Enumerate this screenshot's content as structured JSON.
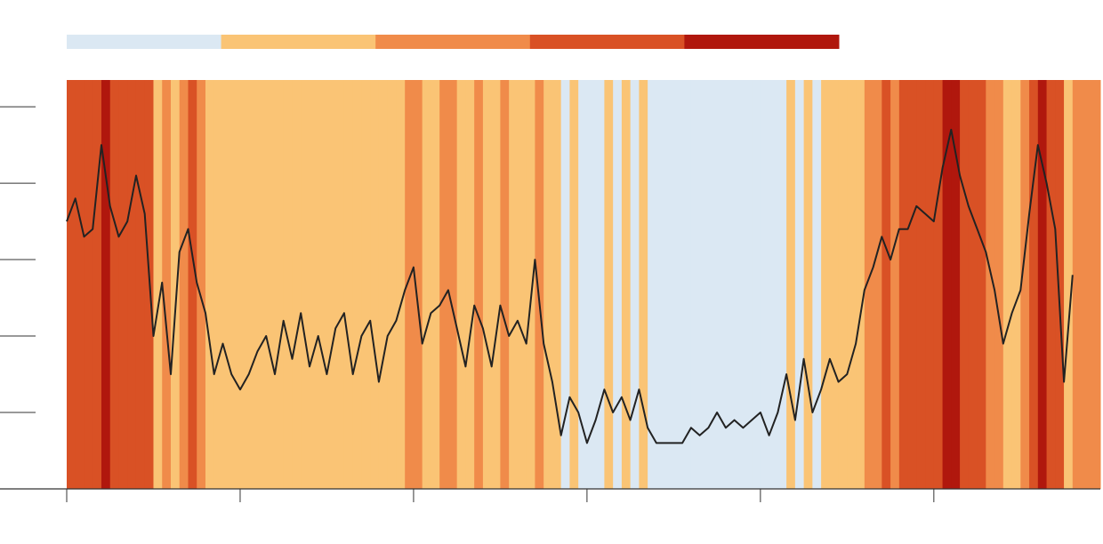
{
  "chart_data": {
    "type": "stripes-line",
    "colorscale": {
      "colors": [
        "#dbe8f3",
        "#fac475",
        "#f08b4a",
        "#d95125",
        "#b0170d"
      ],
      "thresholds": [
        1.2,
        2.4,
        3.2,
        4.2
      ]
    },
    "line_color": "#222222",
    "xlim": [
      0,
      5.96
    ],
    "xticks": [
      0,
      1,
      2,
      3,
      4,
      5
    ],
    "ylim": [
      0,
      5.35
    ],
    "yticks": [
      1,
      2,
      3,
      4,
      5
    ],
    "x": [
      0,
      0.05,
      0.1,
      0.15,
      0.2,
      0.25,
      0.3,
      0.35,
      0.4,
      0.45,
      0.5,
      0.55,
      0.6,
      0.65,
      0.7,
      0.75,
      0.8,
      0.85,
      0.9,
      0.95,
      1,
      1.05,
      1.1,
      1.15,
      1.2,
      1.25,
      1.3,
      1.35,
      1.4,
      1.45,
      1.5,
      1.55,
      1.6,
      1.65,
      1.7,
      1.75,
      1.8,
      1.85,
      1.9,
      1.95,
      2,
      2.05,
      2.1,
      2.15,
      2.2,
      2.25,
      2.3,
      2.35,
      2.4,
      2.45,
      2.5,
      2.55,
      2.6,
      2.65,
      2.7,
      2.75,
      2.8,
      2.85,
      2.9,
      2.95,
      3,
      3.05,
      3.1,
      3.15,
      3.2,
      3.25,
      3.3,
      3.35,
      3.4,
      3.45,
      3.5,
      3.55,
      3.6,
      3.65,
      3.7,
      3.75,
      3.8,
      3.85,
      3.9,
      3.95,
      4,
      4.05,
      4.1,
      4.15,
      4.2,
      4.25,
      4.3,
      4.35,
      4.4,
      4.45,
      4.5,
      4.55,
      4.6,
      4.65,
      4.7,
      4.75,
      4.8,
      4.85,
      4.9,
      4.95,
      5,
      5.05,
      5.1,
      5.15,
      5.2,
      5.25,
      5.3,
      5.35,
      5.4,
      5.45,
      5.5,
      5.55,
      5.6,
      5.65,
      5.7,
      5.75,
      5.8
    ],
    "values": [
      3.5,
      3.8,
      3.3,
      3.4,
      4.5,
      3.7,
      3.3,
      3.5,
      4.1,
      3.6,
      2.0,
      2.7,
      1.5,
      3.1,
      3.4,
      2.7,
      2.3,
      1.5,
      1.9,
      1.5,
      1.3,
      1.5,
      1.8,
      2.0,
      1.5,
      2.2,
      1.7,
      2.3,
      1.6,
      2.0,
      1.5,
      2.1,
      2.3,
      1.5,
      2.0,
      2.2,
      1.4,
      2.0,
      2.2,
      2.6,
      2.9,
      1.9,
      2.3,
      2.4,
      2.6,
      2.1,
      1.6,
      2.4,
      2.1,
      1.6,
      2.4,
      2.0,
      2.2,
      1.9,
      3.0,
      1.9,
      1.4,
      0.7,
      1.2,
      1.0,
      0.6,
      0.9,
      1.3,
      1.0,
      1.2,
      0.9,
      1.3,
      0.8,
      0.6,
      0.6,
      0.6,
      0.6,
      0.8,
      0.7,
      0.8,
      1.0,
      0.8,
      0.9,
      0.8,
      0.9,
      1.0,
      0.7,
      1.0,
      1.5,
      0.9,
      1.7,
      1.0,
      1.3,
      1.7,
      1.4,
      1.5,
      1.9,
      2.6,
      2.9,
      3.3,
      3.0,
      3.4,
      3.4,
      3.7,
      3.6,
      3.5,
      4.2,
      4.7,
      4.1,
      3.7,
      3.4,
      3.1,
      2.6,
      1.9,
      2.3,
      2.6,
      3.6,
      4.5,
      4.0,
      3.4,
      1.4,
      2.8
    ]
  }
}
